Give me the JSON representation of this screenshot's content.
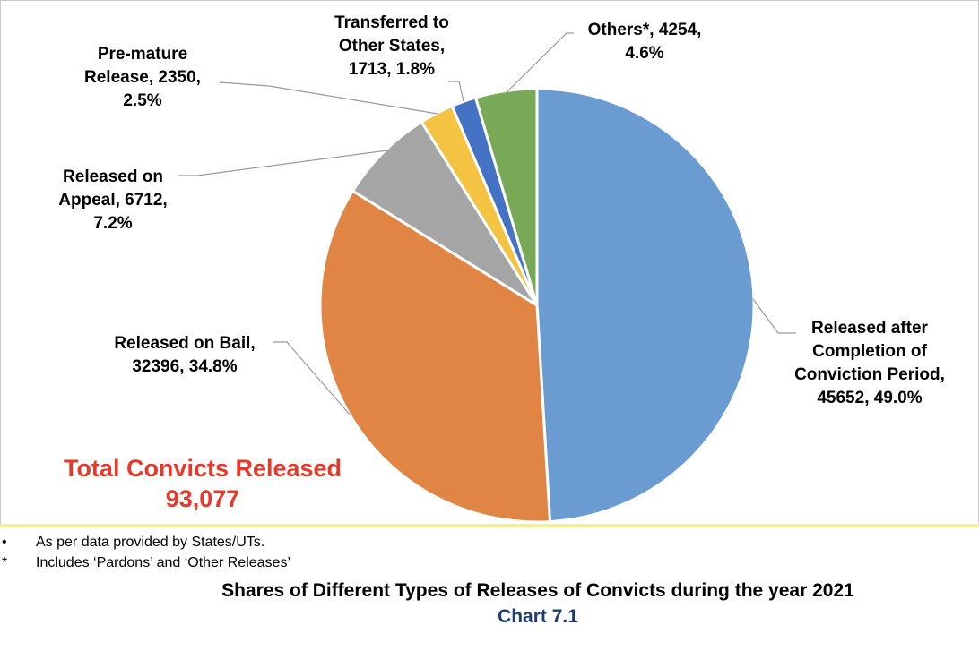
{
  "chart_data": {
    "type": "pie",
    "title": "Shares of Different Types of Releases of Convicts during the year 2021",
    "chart_number": "Chart 7.1",
    "total": {
      "line1": "Total Convicts Released",
      "line2": "93,077"
    },
    "slices": [
      {
        "name": "Released after Completion of Conviction Period",
        "value": 45652,
        "percent": 49.0,
        "color": "#6a9bd1",
        "label_lines": [
          "Released after",
          "Completion of",
          "Conviction Period,",
          "45652, 49.0%"
        ]
      },
      {
        "name": "Released on Bail",
        "value": 32396,
        "percent": 34.8,
        "color": "#e08544",
        "label_lines": [
          "Released on Bail,",
          "32396, 34.8%"
        ]
      },
      {
        "name": "Released on Appeal",
        "value": 6712,
        "percent": 7.2,
        "color": "#a5a5a5",
        "label_lines": [
          "Released on",
          "Appeal, 6712,",
          "7.2%"
        ]
      },
      {
        "name": "Pre-mature Release",
        "value": 2350,
        "percent": 2.5,
        "color": "#f5c342",
        "label_lines": [
          "Pre-mature",
          "Release, 2350,",
          "2.5%"
        ]
      },
      {
        "name": "Transferred to Other States",
        "value": 1713,
        "percent": 1.8,
        "color": "#4472c4",
        "label_lines": [
          "Transferred to",
          "Other States,",
          "1713, 1.8%"
        ]
      },
      {
        "name": "Others*",
        "value": 4254,
        "percent": 4.6,
        "color": "#77a956",
        "label_lines": [
          "Others*, 4254,",
          "4.6%"
        ]
      }
    ]
  },
  "footnotes": [
    {
      "mark": "•",
      "text": "As per data provided by States/UTs."
    },
    {
      "mark": "*",
      "text": "Includes ‘Pardons’ and ‘Other Releases’"
    }
  ]
}
